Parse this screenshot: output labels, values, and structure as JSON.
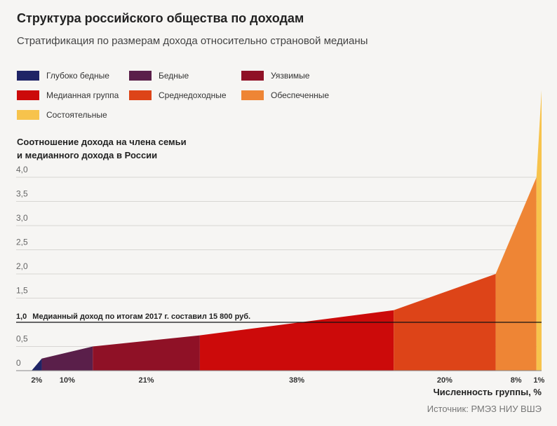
{
  "title": "Структура российского общества по доходам",
  "subtitle": "Стратификация по размерам дохода относительно страновой медианы",
  "source": "Источник: РМЭЗ НИУ ВШЭ",
  "chart_data": {
    "type": "area",
    "ylabel_line1": "Соотношение дохода на члена семьи",
    "ylabel_line2": "и медианного дохода в России",
    "xlabel": "Численность группы, %",
    "ylim": [
      0,
      4
    ],
    "yticks": [
      "0",
      "0,5",
      "1,0",
      "1,5",
      "2,0",
      "2,5",
      "3,0",
      "3,5",
      "4,0"
    ],
    "ytick_values": [
      0,
      0.5,
      1,
      1.5,
      2,
      2.5,
      3,
      3.5,
      4
    ],
    "median_line": {
      "value": 1.0,
      "label": "Медианный доход по итогам 2017 г. составил 15 800 руб."
    },
    "grid": true,
    "groups": [
      {
        "name": "Глубоко бедные",
        "share": 2,
        "share_label": "2%",
        "y_start": 0,
        "y_end": 0.25,
        "color": "#1f2466"
      },
      {
        "name": "Бедные",
        "share": 10,
        "share_label": "10%",
        "y_start": 0.25,
        "y_end": 0.5,
        "color": "#5a1f4a"
      },
      {
        "name": "Уязвимые",
        "share": 21,
        "share_label": "21%",
        "y_start": 0.5,
        "y_end": 0.73,
        "color": "#8f1126"
      },
      {
        "name": "Медианная группа",
        "share": 38,
        "share_label": "38%",
        "y_start": 0.73,
        "y_end": 1.25,
        "color": "#cc0a0a"
      },
      {
        "name": "Среднедоходные",
        "share": 20,
        "share_label": "20%",
        "y_start": 1.25,
        "y_end": 2.0,
        "color": "#dd4418"
      },
      {
        "name": "Обеспеченные",
        "share": 8,
        "share_label": "8%",
        "y_start": 2.0,
        "y_end": 4.0,
        "color": "#ee8535"
      },
      {
        "name": "Состоятельные",
        "share": 1,
        "share_label": "1%",
        "y_start": 4.0,
        "y_end": 5.8,
        "color": "#f7c34c"
      }
    ]
  }
}
